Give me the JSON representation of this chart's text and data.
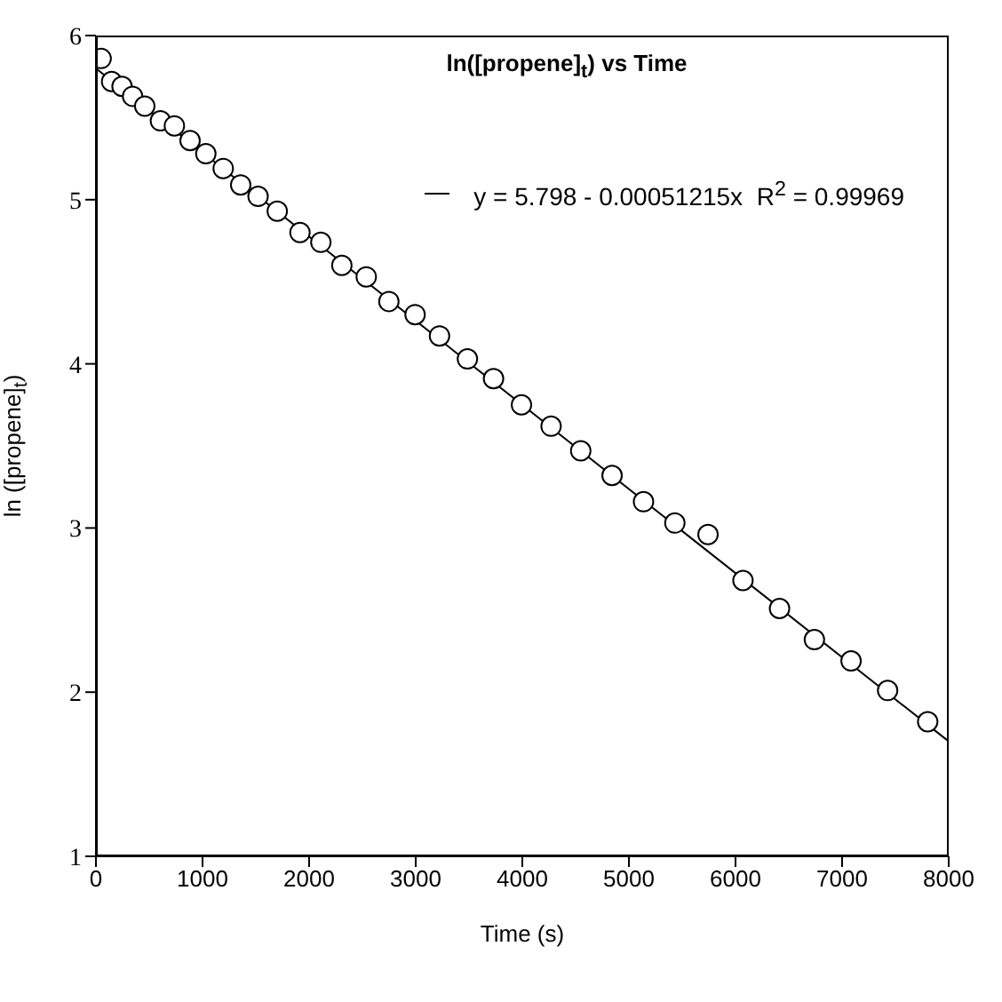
{
  "chart_data": {
    "type": "scatter",
    "title": "ln([propene]$_{t}$) vs Time",
    "xlabel": "Time (s)",
    "ylabel": "ln ([propene]$_{t}$)",
    "xlim": [
      0,
      8000
    ],
    "xticks": [
      0,
      1000,
      2000,
      3000,
      4000,
      5000,
      6000,
      7000,
      8000
    ],
    "ylim": [
      1,
      6
    ],
    "yticks": [
      1,
      2,
      3,
      4,
      5,
      6
    ],
    "grid": false,
    "legend": "top right",
    "series": [
      {
        "marker": "circle",
        "color": "#000000",
        "x": [
          49,
          147,
          245,
          344,
          458,
          605,
          736,
          883,
          1031,
          1194,
          1358,
          1521,
          1701,
          1914,
          2110,
          2307,
          2536,
          2748,
          2994,
          3223,
          3485,
          3730,
          3992,
          4270,
          4548,
          4842,
          5137,
          5431,
          5742,
          6070,
          6413,
          6740,
          7084,
          7427,
          7803
        ],
        "values": [
          5.86,
          5.72,
          5.69,
          5.63,
          5.57,
          5.48,
          5.45,
          5.36,
          5.28,
          5.19,
          5.09,
          5.02,
          4.93,
          4.8,
          4.74,
          4.6,
          4.53,
          4.38,
          4.3,
          4.17,
          4.03,
          3.91,
          3.75,
          3.62,
          3.47,
          3.32,
          3.16,
          3.03,
          2.96,
          2.68,
          2.51,
          2.32,
          2.19,
          2.01,
          1.82
        ]
      },
      {
        "type": "line",
        "name": "y = 5.798 - 0.00051215x  R$^{2}$ = 0.99969",
        "color": "#000000",
        "line_style": "solid",
        "x": [
          0,
          8000
        ],
        "values": [
          5.8,
          1.7
        ]
      }
    ]
  }
}
